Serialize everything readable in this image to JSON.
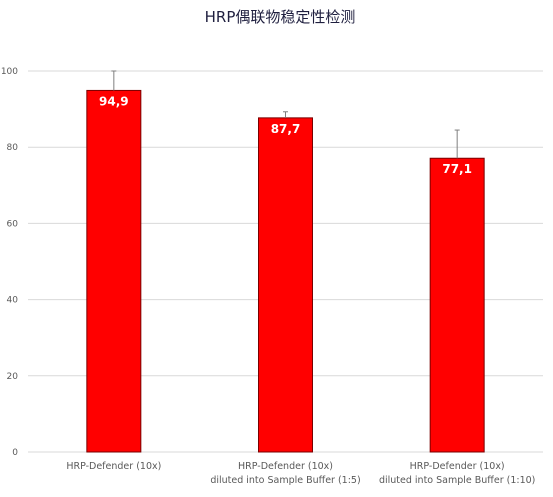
{
  "chart_data": {
    "type": "bar",
    "title": "HRP偶联物稳定性检测",
    "xlabel": "",
    "ylabel": "",
    "ylim": [
      0,
      100
    ],
    "yticks": [
      0,
      20,
      40,
      60,
      80,
      100
    ],
    "grid": true,
    "legend": "none",
    "categories": [
      [
        "HRP-Defender (10x)"
      ],
      [
        "HRP-Defender (10x)",
        "diluted into Sample Buffer (1:5)"
      ],
      [
        "HRP-Defender (10x)",
        "diluted into Sample Buffer (1:10)"
      ]
    ],
    "values": [
      94.9,
      87.7,
      77.1
    ],
    "value_labels": [
      "94,9",
      "87,7",
      "77,1"
    ],
    "error_upper": [
      5.1,
      1.6,
      7.4
    ],
    "colors": {
      "bar": "#ff0000",
      "bar_edge": "#7a0000",
      "error": "#7f7f7f",
      "grid": "#d9d9d9"
    }
  }
}
